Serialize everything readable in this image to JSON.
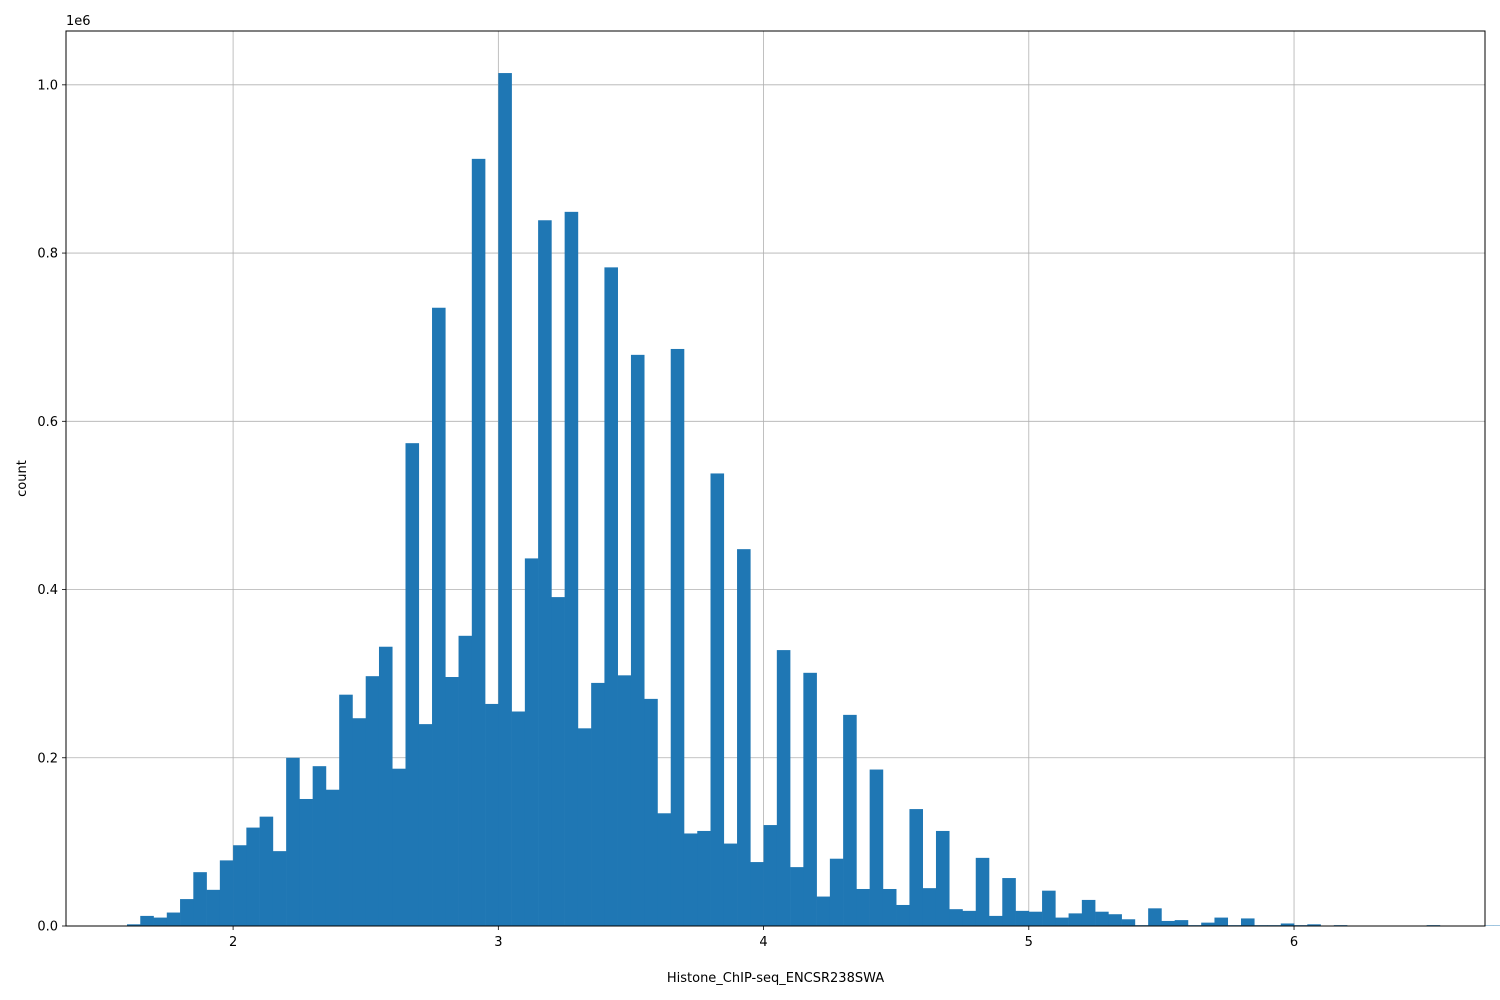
{
  "chart_data": {
    "type": "bar",
    "subtype": "histogram",
    "xlabel": "Histone_ChIP-seq_ENCSR238SWA",
    "ylabel": "count",
    "y_offset_label": "1e6",
    "xlim": [
      1.37,
      6.72
    ],
    "ylim": [
      0,
      1064000
    ],
    "grid": true,
    "bar_color": "#1f77b4",
    "bin_start": 1.6,
    "bin_width": 0.05,
    "x_ticks": [
      {
        "value": 2,
        "label": "2"
      },
      {
        "value": 3,
        "label": "3"
      },
      {
        "value": 4,
        "label": "4"
      },
      {
        "value": 5,
        "label": "5"
      },
      {
        "value": 6,
        "label": "6"
      }
    ],
    "y_ticks": [
      {
        "value": 0,
        "label": "0.0"
      },
      {
        "value": 200000,
        "label": "0.2"
      },
      {
        "value": 400000,
        "label": "0.4"
      },
      {
        "value": 600000,
        "label": "0.6"
      },
      {
        "value": 800000,
        "label": "0.8"
      },
      {
        "value": 1000000,
        "label": "1.0"
      }
    ],
    "values": [
      2000,
      12000,
      10000,
      16000,
      32000,
      64000,
      43000,
      78000,
      96000,
      117000,
      130000,
      89000,
      200000,
      151000,
      190000,
      162000,
      275000,
      247000,
      297000,
      332000,
      187000,
      574000,
      240000,
      735000,
      296000,
      345000,
      912000,
      264000,
      1014000,
      255000,
      437000,
      839000,
      391000,
      849000,
      235000,
      289000,
      783000,
      298000,
      679000,
      270000,
      134000,
      686000,
      110000,
      113000,
      538000,
      98000,
      448000,
      76000,
      120000,
      328000,
      70000,
      301000,
      35000,
      80000,
      251000,
      44000,
      186000,
      44000,
      25000,
      139000,
      45000,
      113000,
      20000,
      18000,
      81000,
      12000,
      57000,
      18000,
      17000,
      42000,
      10000,
      15000,
      31000,
      17000,
      14000,
      8000,
      1000,
      21000,
      6000,
      7000,
      1000,
      4000,
      10000,
      1000,
      9000,
      1000,
      1000,
      3000,
      1000,
      2000,
      500,
      1000,
      500,
      500,
      500,
      500,
      500,
      500,
      1000,
      500,
      500,
      500,
      500,
      500,
      500,
      500
    ]
  }
}
